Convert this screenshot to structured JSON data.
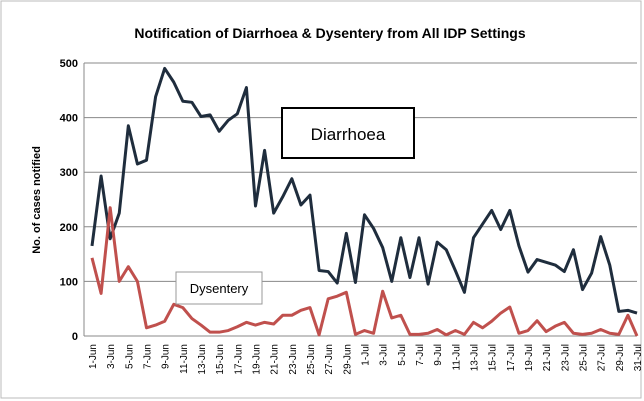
{
  "chart_data": {
    "type": "line",
    "title": "Notification of Diarrhoea & Dysentery from All IDP Settings",
    "y_label": "No. of cases notified",
    "categories": [
      "1-Jun",
      null,
      "3-Jun",
      null,
      "5-Jun",
      null,
      "7-Jun",
      null,
      "9-Jun",
      null,
      "11-Jun",
      null,
      "13-Jun",
      null,
      "15-Jun",
      null,
      "17-Jun",
      null,
      "19-Jun",
      null,
      "21-Jun",
      null,
      "23-Jun",
      null,
      "25-Jun",
      null,
      "27-Jun",
      null,
      "29-Jun",
      null,
      "1-Jul",
      null,
      "3-Jul",
      null,
      "5-Jul",
      null,
      "7-Jul",
      null,
      "9-Jul",
      null,
      "11-Jul",
      null,
      "13-Jul",
      null,
      "15-Jul",
      null,
      "17-Jul",
      null,
      "19-Jul",
      null,
      "21-Jul",
      null,
      "23-Jul",
      null,
      "25-Jul",
      null,
      "27-Jul",
      null,
      "29-Jul",
      null,
      "31-Jul"
    ],
    "series": [
      {
        "name": "Diarrhoea",
        "color": "#1f2d3d",
        "values": [
          165,
          293,
          178,
          225,
          385,
          315,
          322,
          438,
          490,
          465,
          430,
          428,
          402,
          405,
          375,
          395,
          407,
          455,
          238,
          340,
          225,
          255,
          288,
          240,
          258,
          120,
          118,
          97,
          188,
          98,
          222,
          197,
          162,
          100,
          180,
          107,
          180,
          95,
          172,
          158,
          120,
          80,
          180,
          205,
          230,
          195,
          230,
          165,
          117,
          140,
          135,
          130,
          118,
          158,
          85,
          115,
          182,
          130,
          45,
          47,
          42
        ]
      },
      {
        "name": "Dysentery",
        "color": "#c0504d",
        "values": [
          143,
          78,
          235,
          100,
          127,
          100,
          15,
          20,
          27,
          58,
          52,
          32,
          20,
          7,
          7,
          10,
          17,
          25,
          20,
          25,
          22,
          38,
          38,
          47,
          52,
          2,
          68,
          73,
          80,
          3,
          10,
          5,
          82,
          33,
          38,
          3,
          3,
          5,
          12,
          2,
          10,
          3,
          25,
          15,
          27,
          42,
          53,
          5,
          10,
          28,
          8,
          18,
          25,
          5,
          3,
          5,
          12,
          5,
          3,
          38,
          0
        ]
      }
    ],
    "ylim": [
      0,
      500
    ],
    "yticks": [
      0,
      100,
      200,
      300,
      400,
      500
    ],
    "grid": true
  }
}
